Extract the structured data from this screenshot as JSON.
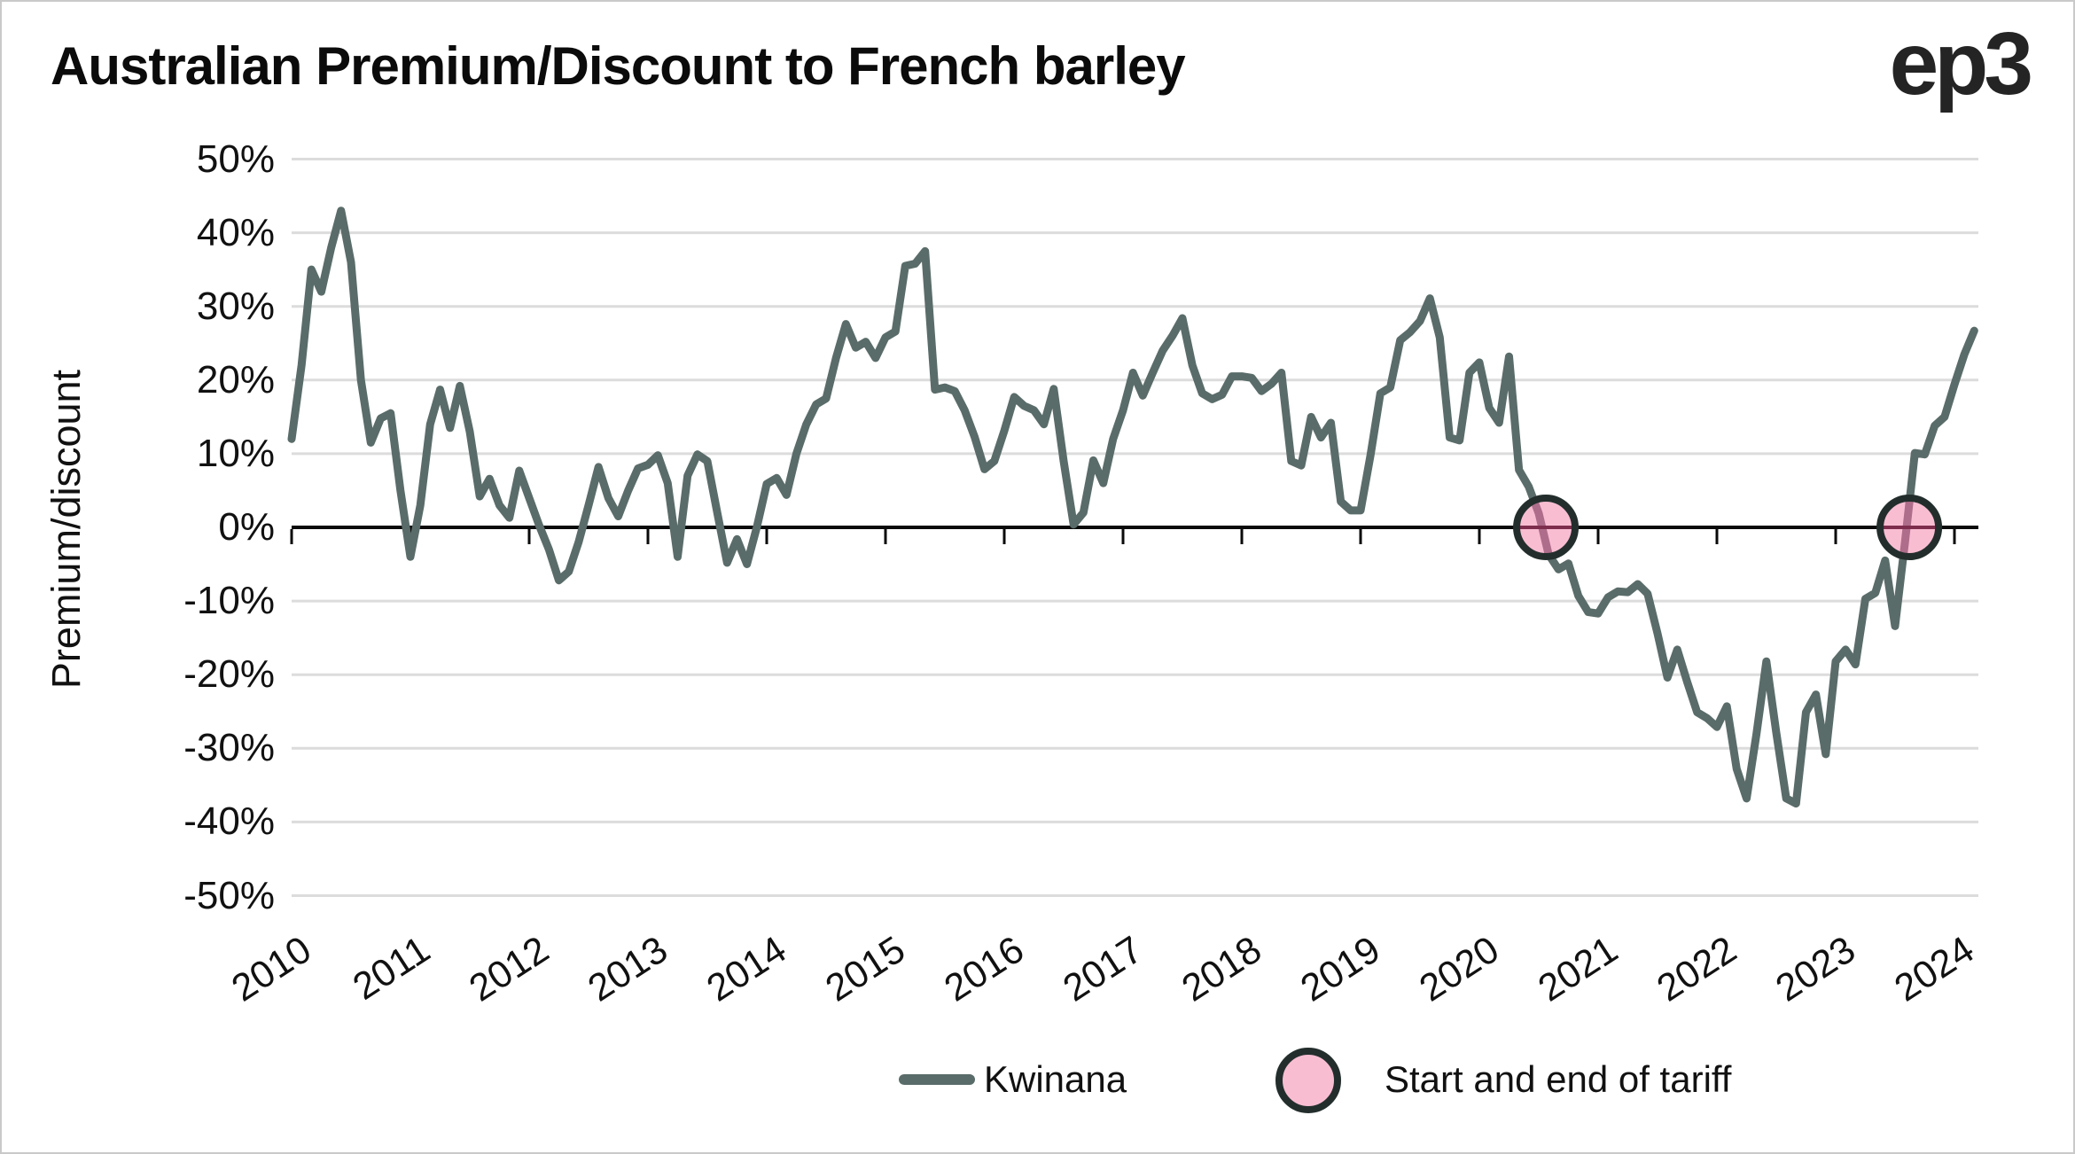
{
  "header": {
    "title": "Australian Premium/Discount to French barley",
    "logo_text": "ep3"
  },
  "axes": {
    "y_title": "Premium/discount",
    "y_tick_labels": [
      "50%",
      "40%",
      "30%",
      "20%",
      "10%",
      "0%",
      "-10%",
      "-20%",
      "-30%",
      "-40%",
      "-50%"
    ],
    "y_tick_values": [
      50,
      40,
      30,
      20,
      10,
      0,
      -10,
      -20,
      -30,
      -40,
      -50
    ],
    "x_tick_labels": [
      "2010",
      "2011",
      "2012",
      "2013",
      "2014",
      "2015",
      "2016",
      "2017",
      "2018",
      "2019",
      "2020",
      "2021",
      "2022",
      "2023",
      "2024"
    ]
  },
  "legend": {
    "series_label": "Kwinana",
    "marker_label": "Start and end of tariff"
  },
  "colors": {
    "line": "#5A6C69",
    "marker_fill": "#F9BDD2",
    "marker_stroke": "#232E2C",
    "marker_line_tint": "#AE6D8A",
    "marker_axis_tint": "#7E2D4D",
    "grid": "#DCDCDC",
    "axis": "#0a0a0a",
    "text": "#111111"
  },
  "chart_data": {
    "type": "line",
    "title": "Australian Premium/Discount to French barley",
    "xlabel": "",
    "ylabel": "Premium/discount",
    "ylim": [
      -50,
      50
    ],
    "grid": true,
    "legend_position": "bottom",
    "x_unit": "monthly, decimal years",
    "x_start_year": 2010,
    "x_end_year": 2024.17,
    "series": [
      {
        "name": "Kwinana",
        "start": "2010-01",
        "frequency": "monthly",
        "values_pct": [
          12,
          22,
          35,
          32,
          38,
          43,
          36,
          20,
          11.5,
          14.8,
          15.5,
          5,
          -4,
          3,
          14,
          18.7,
          13.5,
          19.2,
          13,
          4.2,
          6.6,
          3,
          1.3,
          7.7,
          4,
          0.3,
          -3,
          -7.2,
          -6,
          -2,
          3,
          8.2,
          4,
          1.5,
          5,
          8,
          8.5,
          9.8,
          6,
          -4,
          7,
          9.9,
          9,
          2,
          -4.8,
          -1.6,
          -5,
          0,
          5.9,
          6.7,
          4.4,
          10,
          14,
          16.7,
          17.5,
          23,
          27.6,
          24.4,
          25.2,
          23,
          25.8,
          26.6,
          35.5,
          35.8,
          37.5,
          18.7,
          19,
          18.5,
          15.9,
          12.3,
          7.9,
          9,
          13.1,
          17.7,
          16.5,
          15.9,
          14,
          18.8,
          9,
          0.4,
          2,
          9.1,
          6,
          12,
          15.9,
          21,
          17.9,
          21,
          24,
          26,
          28.4,
          22,
          18.2,
          17.4,
          18,
          20.5,
          20.5,
          20.3,
          18.5,
          19.5,
          21,
          9,
          8.4,
          15,
          12.2,
          14.2,
          3.5,
          2.3,
          2.3,
          9.8,
          18.2,
          19,
          25.4,
          26.5,
          28,
          31.1,
          25.8,
          12.2,
          11.8,
          21,
          22.4,
          16.2,
          14.2,
          23.2,
          7.8,
          5.5,
          1.9,
          -3.7,
          -5.7,
          -4.9,
          -9.3,
          -11.5,
          -11.7,
          -9.5,
          -8.7,
          -8.8,
          -7.7,
          -9,
          -14.4,
          -20.4,
          -16.6,
          -21,
          -25.1,
          -25.9,
          -27.1,
          -24.3,
          -32.8,
          -36.8,
          -28,
          -18.2,
          -27.9,
          -36.8,
          -37.5,
          -25.1,
          -22.7,
          -30.8,
          -18.2,
          -16.6,
          -18.6,
          -9.7,
          -8.9,
          -4.5,
          -13.4,
          -2,
          10.1,
          9.9,
          13.8,
          15,
          19.4,
          23.5,
          26.7
        ]
      }
    ],
    "markers": {
      "label": "Start and end of tariff",
      "points": [
        {
          "x_year": 2020.56,
          "y_pct": 0
        },
        {
          "x_year": 2023.62,
          "y_pct": 0
        }
      ]
    },
    "annotations": []
  }
}
